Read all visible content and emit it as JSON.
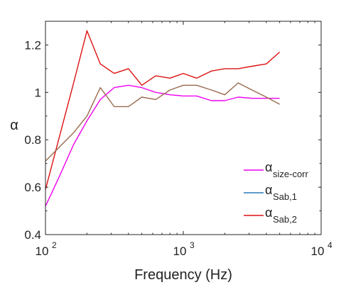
{
  "chart_data": {
    "type": "line",
    "xscale": "log",
    "xlim": [
      100,
      10000
    ],
    "ylim": [
      0.4,
      1.3
    ],
    "xlabel": "Frequency (Hz)",
    "ylabel": "α",
    "x_ticks": [
      {
        "value": 100,
        "base": "10",
        "exp": "2"
      },
      {
        "value": 1000,
        "base": "10",
        "exp": "3"
      },
      {
        "value": 10000,
        "base": "10",
        "exp": "4"
      }
    ],
    "y_ticks": [
      {
        "value": 0.4,
        "label": "0.4"
      },
      {
        "value": 0.6,
        "label": "0.6"
      },
      {
        "value": 0.8,
        "label": "0.8"
      },
      {
        "value": 1.0,
        "label": "1"
      },
      {
        "value": 1.2,
        "label": "1.2"
      }
    ],
    "legend_position": "bottom-right",
    "series": [
      {
        "name": "α",
        "subscript": "size-corr",
        "color": "#ee00ee",
        "x": [
          100,
          125,
          160,
          200,
          250,
          315,
          400,
          500,
          630,
          800,
          1000,
          1250,
          1600,
          2000,
          2500,
          3150,
          4000,
          5000
        ],
        "y": [
          0.52,
          0.64,
          0.78,
          0.88,
          0.97,
          1.02,
          1.03,
          1.02,
          1.0,
          0.99,
          0.985,
          0.985,
          0.965,
          0.965,
          0.98,
          0.975,
          0.975,
          0.975
        ]
      },
      {
        "name": "α",
        "subscript": "Sab,1",
        "color": "#2a7ab8",
        "legend_only": true,
        "x": [],
        "y": []
      },
      {
        "name": "α",
        "subscript": "Sab,2",
        "color": "#dd1111",
        "x": [
          100,
          160,
          200,
          250,
          315,
          400,
          500,
          630,
          800,
          1000,
          1250,
          1600,
          2000,
          2500,
          3150,
          4000,
          5000
        ],
        "y": [
          0.59,
          1.04,
          1.26,
          1.12,
          1.08,
          1.1,
          1.03,
          1.07,
          1.06,
          1.08,
          1.06,
          1.09,
          1.1,
          1.1,
          1.11,
          1.12,
          1.17
        ]
      },
      {
        "name": "",
        "color": "#9b6a4f",
        "x": [
          100,
          160,
          200,
          250,
          315,
          400,
          500,
          630,
          800,
          1000,
          1250,
          1600,
          2000,
          2500,
          3150,
          4000,
          5000
        ],
        "y": [
          0.71,
          0.83,
          0.9,
          1.02,
          0.94,
          0.94,
          0.98,
          0.97,
          1.01,
          1.03,
          1.03,
          1.01,
          0.99,
          1.04,
          1.01,
          0.98,
          0.95
        ]
      }
    ]
  }
}
